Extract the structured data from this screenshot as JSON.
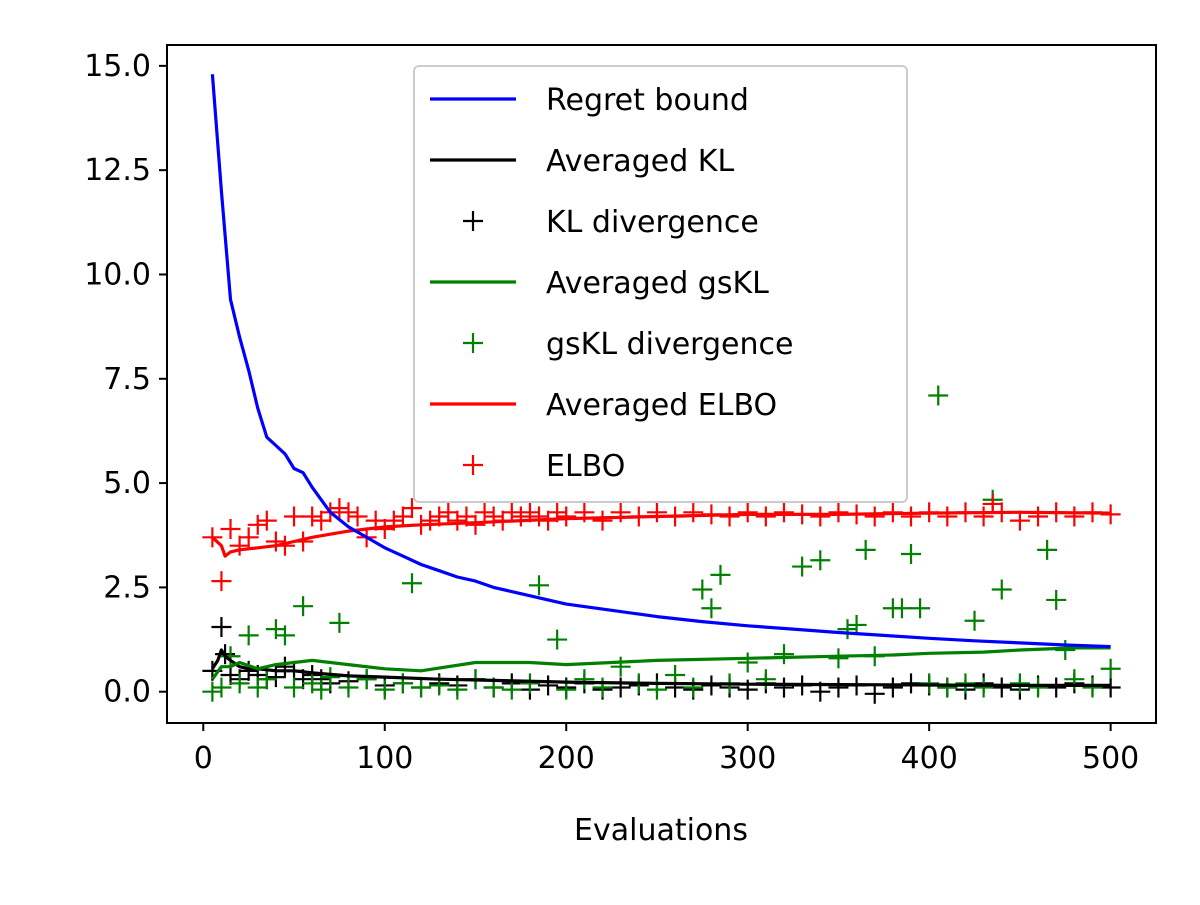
{
  "chart_data": {
    "type": "line",
    "title": "",
    "xlabel": "Evaluations",
    "ylabel": "",
    "xlim": [
      -20,
      525
    ],
    "ylim": [
      -0.75,
      15.5
    ],
    "xticks": [
      0,
      100,
      200,
      300,
      400,
      500
    ],
    "xtick_labels": [
      "0",
      "100",
      "200",
      "300",
      "400",
      "500"
    ],
    "yticks": [
      0,
      2.5,
      5,
      7.5,
      10,
      12.5,
      15
    ],
    "ytick_labels": [
      "0.0",
      "2.5",
      "5.0",
      "7.5",
      "10.0",
      "12.5",
      "15.0"
    ],
    "grid": false,
    "legend_position": "top-center",
    "series": [
      {
        "name": "Regret bound",
        "kind": "line",
        "color": "#0000ff",
        "x": [
          5,
          10,
          15,
          20,
          25,
          30,
          35,
          40,
          45,
          50,
          55,
          60,
          70,
          80,
          90,
          100,
          110,
          120,
          130,
          140,
          150,
          160,
          175,
          190,
          200,
          225,
          250,
          275,
          300,
          325,
          350,
          375,
          400,
          425,
          450,
          475,
          500
        ],
        "y": [
          14.8,
          12.0,
          9.4,
          8.5,
          7.7,
          6.8,
          6.1,
          5.9,
          5.7,
          5.35,
          5.25,
          4.9,
          4.3,
          3.95,
          3.7,
          3.45,
          3.25,
          3.05,
          2.9,
          2.75,
          2.65,
          2.5,
          2.35,
          2.2,
          2.1,
          1.95,
          1.8,
          1.68,
          1.58,
          1.5,
          1.42,
          1.35,
          1.28,
          1.22,
          1.17,
          1.12,
          1.08
        ]
      },
      {
        "name": "Averaged KL",
        "kind": "line",
        "color": "#000000",
        "x": [
          5,
          8,
          10,
          12,
          15,
          20,
          25,
          30,
          40,
          50,
          60,
          80,
          100,
          130,
          160,
          200,
          250,
          300,
          350,
          400,
          450,
          500
        ],
        "y": [
          0.55,
          0.75,
          1.0,
          0.85,
          0.75,
          0.6,
          0.55,
          0.55,
          0.5,
          0.5,
          0.45,
          0.38,
          0.35,
          0.3,
          0.27,
          0.23,
          0.2,
          0.18,
          0.17,
          0.16,
          0.15,
          0.15
        ]
      },
      {
        "name": "KL divergence",
        "kind": "scatter",
        "color": "#000000",
        "x": [
          5,
          10,
          12,
          15,
          20,
          25,
          30,
          35,
          40,
          45,
          50,
          55,
          60,
          65,
          70,
          80,
          90,
          100,
          110,
          120,
          130,
          140,
          150,
          160,
          170,
          180,
          190,
          200,
          210,
          220,
          230,
          240,
          250,
          260,
          270,
          280,
          290,
          300,
          310,
          320,
          330,
          340,
          350,
          360,
          370,
          380,
          390,
          400,
          410,
          420,
          430,
          440,
          450,
          460,
          470,
          480,
          490,
          500
        ],
        "y": [
          0.5,
          1.55,
          0.9,
          0.4,
          0.3,
          0.5,
          0.4,
          0.3,
          0.35,
          0.6,
          0.5,
          0.3,
          0.4,
          0.3,
          0.2,
          0.25,
          0.3,
          0.15,
          0.2,
          0.1,
          0.2,
          0.15,
          0.3,
          0.1,
          0.2,
          0.05,
          0.15,
          0.1,
          0.2,
          0.05,
          0.1,
          0.15,
          0.2,
          0.1,
          0.05,
          0.15,
          0.1,
          0.05,
          0.2,
          0.1,
          0.15,
          0.0,
          0.1,
          0.15,
          -0.05,
          0.1,
          0.2,
          0.15,
          0.1,
          0.05,
          0.2,
          0.1,
          0.05,
          0.15,
          0.1,
          0.2,
          0.15,
          0.1
        ]
      },
      {
        "name": "Averaged gsKL",
        "kind": "line",
        "color": "#008000",
        "x": [
          5,
          10,
          15,
          20,
          30,
          40,
          50,
          60,
          80,
          100,
          120,
          150,
          180,
          200,
          250,
          300,
          350,
          380,
          400,
          430,
          450,
          480,
          500
        ],
        "y": [
          0.3,
          0.6,
          0.6,
          0.7,
          0.55,
          0.65,
          0.7,
          0.75,
          0.65,
          0.55,
          0.5,
          0.7,
          0.7,
          0.65,
          0.75,
          0.8,
          0.85,
          0.88,
          0.92,
          0.95,
          1.0,
          1.05,
          1.05
        ]
      },
      {
        "name": "gsKL divergence",
        "kind": "scatter",
        "color": "#008000",
        "x": [
          5,
          10,
          15,
          20,
          25,
          30,
          35,
          40,
          45,
          50,
          55,
          60,
          65,
          70,
          75,
          80,
          90,
          100,
          110,
          115,
          120,
          130,
          140,
          150,
          160,
          170,
          180,
          185,
          195,
          200,
          210,
          220,
          230,
          240,
          250,
          260,
          270,
          275,
          280,
          285,
          290,
          300,
          310,
          320,
          330,
          340,
          350,
          355,
          360,
          365,
          370,
          380,
          385,
          390,
          395,
          400,
          405,
          410,
          420,
          425,
          430,
          435,
          440,
          450,
          460,
          465,
          470,
          475,
          480,
          490,
          500
        ],
        "y": [
          0.0,
          0.1,
          0.85,
          0.2,
          1.35,
          0.1,
          0.3,
          1.5,
          1.35,
          0.1,
          2.05,
          0.2,
          0.05,
          0.35,
          1.65,
          0.1,
          0.3,
          0.05,
          0.2,
          2.6,
          0.1,
          0.15,
          0.05,
          0.3,
          0.1,
          0.05,
          0.2,
          2.55,
          1.25,
          0.05,
          0.3,
          0.1,
          0.6,
          0.2,
          0.05,
          0.4,
          0.1,
          2.45,
          2.0,
          2.8,
          0.2,
          0.7,
          0.3,
          0.9,
          3.0,
          3.15,
          0.8,
          1.5,
          1.6,
          3.4,
          0.85,
          2.0,
          2.0,
          3.3,
          2.0,
          0.2,
          7.1,
          0.1,
          0.2,
          1.7,
          0.1,
          4.6,
          2.45,
          0.2,
          0.1,
          3.4,
          2.2,
          1.0,
          0.3,
          0.1,
          0.55
        ]
      },
      {
        "name": "Averaged ELBO",
        "kind": "line",
        "color": "#ff0000",
        "x": [
          5,
          10,
          12,
          15,
          20,
          30,
          40,
          50,
          60,
          80,
          100,
          120,
          150,
          200,
          250,
          300,
          350,
          400,
          450,
          500
        ],
        "y": [
          3.7,
          3.5,
          3.25,
          3.35,
          3.4,
          3.45,
          3.5,
          3.6,
          3.7,
          3.85,
          3.95,
          4.0,
          4.05,
          4.15,
          4.2,
          4.25,
          4.25,
          4.28,
          4.3,
          4.28
        ]
      },
      {
        "name": "ELBO",
        "kind": "scatter",
        "color": "#ff0000",
        "x": [
          5,
          10,
          15,
          20,
          25,
          30,
          35,
          40,
          45,
          50,
          55,
          60,
          65,
          70,
          75,
          80,
          85,
          90,
          95,
          100,
          105,
          110,
          115,
          120,
          125,
          130,
          135,
          140,
          145,
          150,
          155,
          160,
          165,
          170,
          175,
          180,
          185,
          190,
          195,
          200,
          210,
          220,
          230,
          240,
          250,
          260,
          270,
          280,
          290,
          300,
          310,
          320,
          330,
          340,
          350,
          360,
          370,
          380,
          390,
          400,
          410,
          420,
          430,
          435,
          440,
          450,
          460,
          470,
          480,
          490,
          500
        ],
        "y": [
          3.7,
          2.65,
          3.9,
          3.5,
          3.7,
          4.0,
          4.1,
          3.6,
          3.5,
          4.2,
          3.6,
          4.2,
          4.1,
          4.3,
          4.4,
          4.3,
          4.2,
          3.7,
          4.1,
          3.9,
          4.1,
          4.2,
          4.4,
          4.0,
          4.1,
          4.2,
          4.3,
          4.1,
          4.2,
          4.0,
          4.3,
          4.2,
          4.1,
          4.3,
          4.2,
          4.3,
          4.2,
          4.1,
          4.3,
          4.2,
          4.3,
          4.1,
          4.3,
          4.2,
          4.3,
          4.2,
          4.3,
          4.25,
          4.2,
          4.3,
          4.2,
          4.3,
          4.25,
          4.2,
          4.3,
          4.25,
          4.2,
          4.3,
          4.2,
          4.3,
          4.2,
          4.3,
          4.2,
          4.5,
          4.3,
          4.1,
          4.2,
          4.3,
          4.2,
          4.3,
          4.25
        ]
      }
    ]
  }
}
